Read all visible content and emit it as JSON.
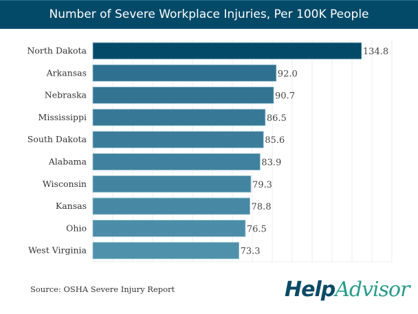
{
  "chart_data": {
    "type": "bar",
    "orientation": "horizontal",
    "title": "Number of Severe Workplace Injuries, Per 100K People",
    "categories": [
      "North Dakota",
      "Arkansas",
      "Nebraska",
      "Mississippi",
      "South Dakota",
      "Alabama",
      "Wisconsin",
      "Kansas",
      "Ohio",
      "West Virginia"
    ],
    "values": [
      134.8,
      92.0,
      90.7,
      86.5,
      85.6,
      83.9,
      79.3,
      78.8,
      76.5,
      73.3
    ],
    "value_labels": [
      "134.8",
      "92.0",
      "90.7",
      "86.5",
      "85.6",
      "83.9",
      "79.3",
      "78.8",
      "76.5",
      "73.3"
    ],
    "xlim": [
      0,
      150
    ],
    "grid": true,
    "colors": {
      "highlight": "#034a69",
      "start": "#2f7090",
      "end": "#4f91ab"
    }
  },
  "footer": {
    "source": "Source: OSHA Severe Injury Report",
    "logo_help": "Help",
    "logo_advisor": "Advisor"
  }
}
